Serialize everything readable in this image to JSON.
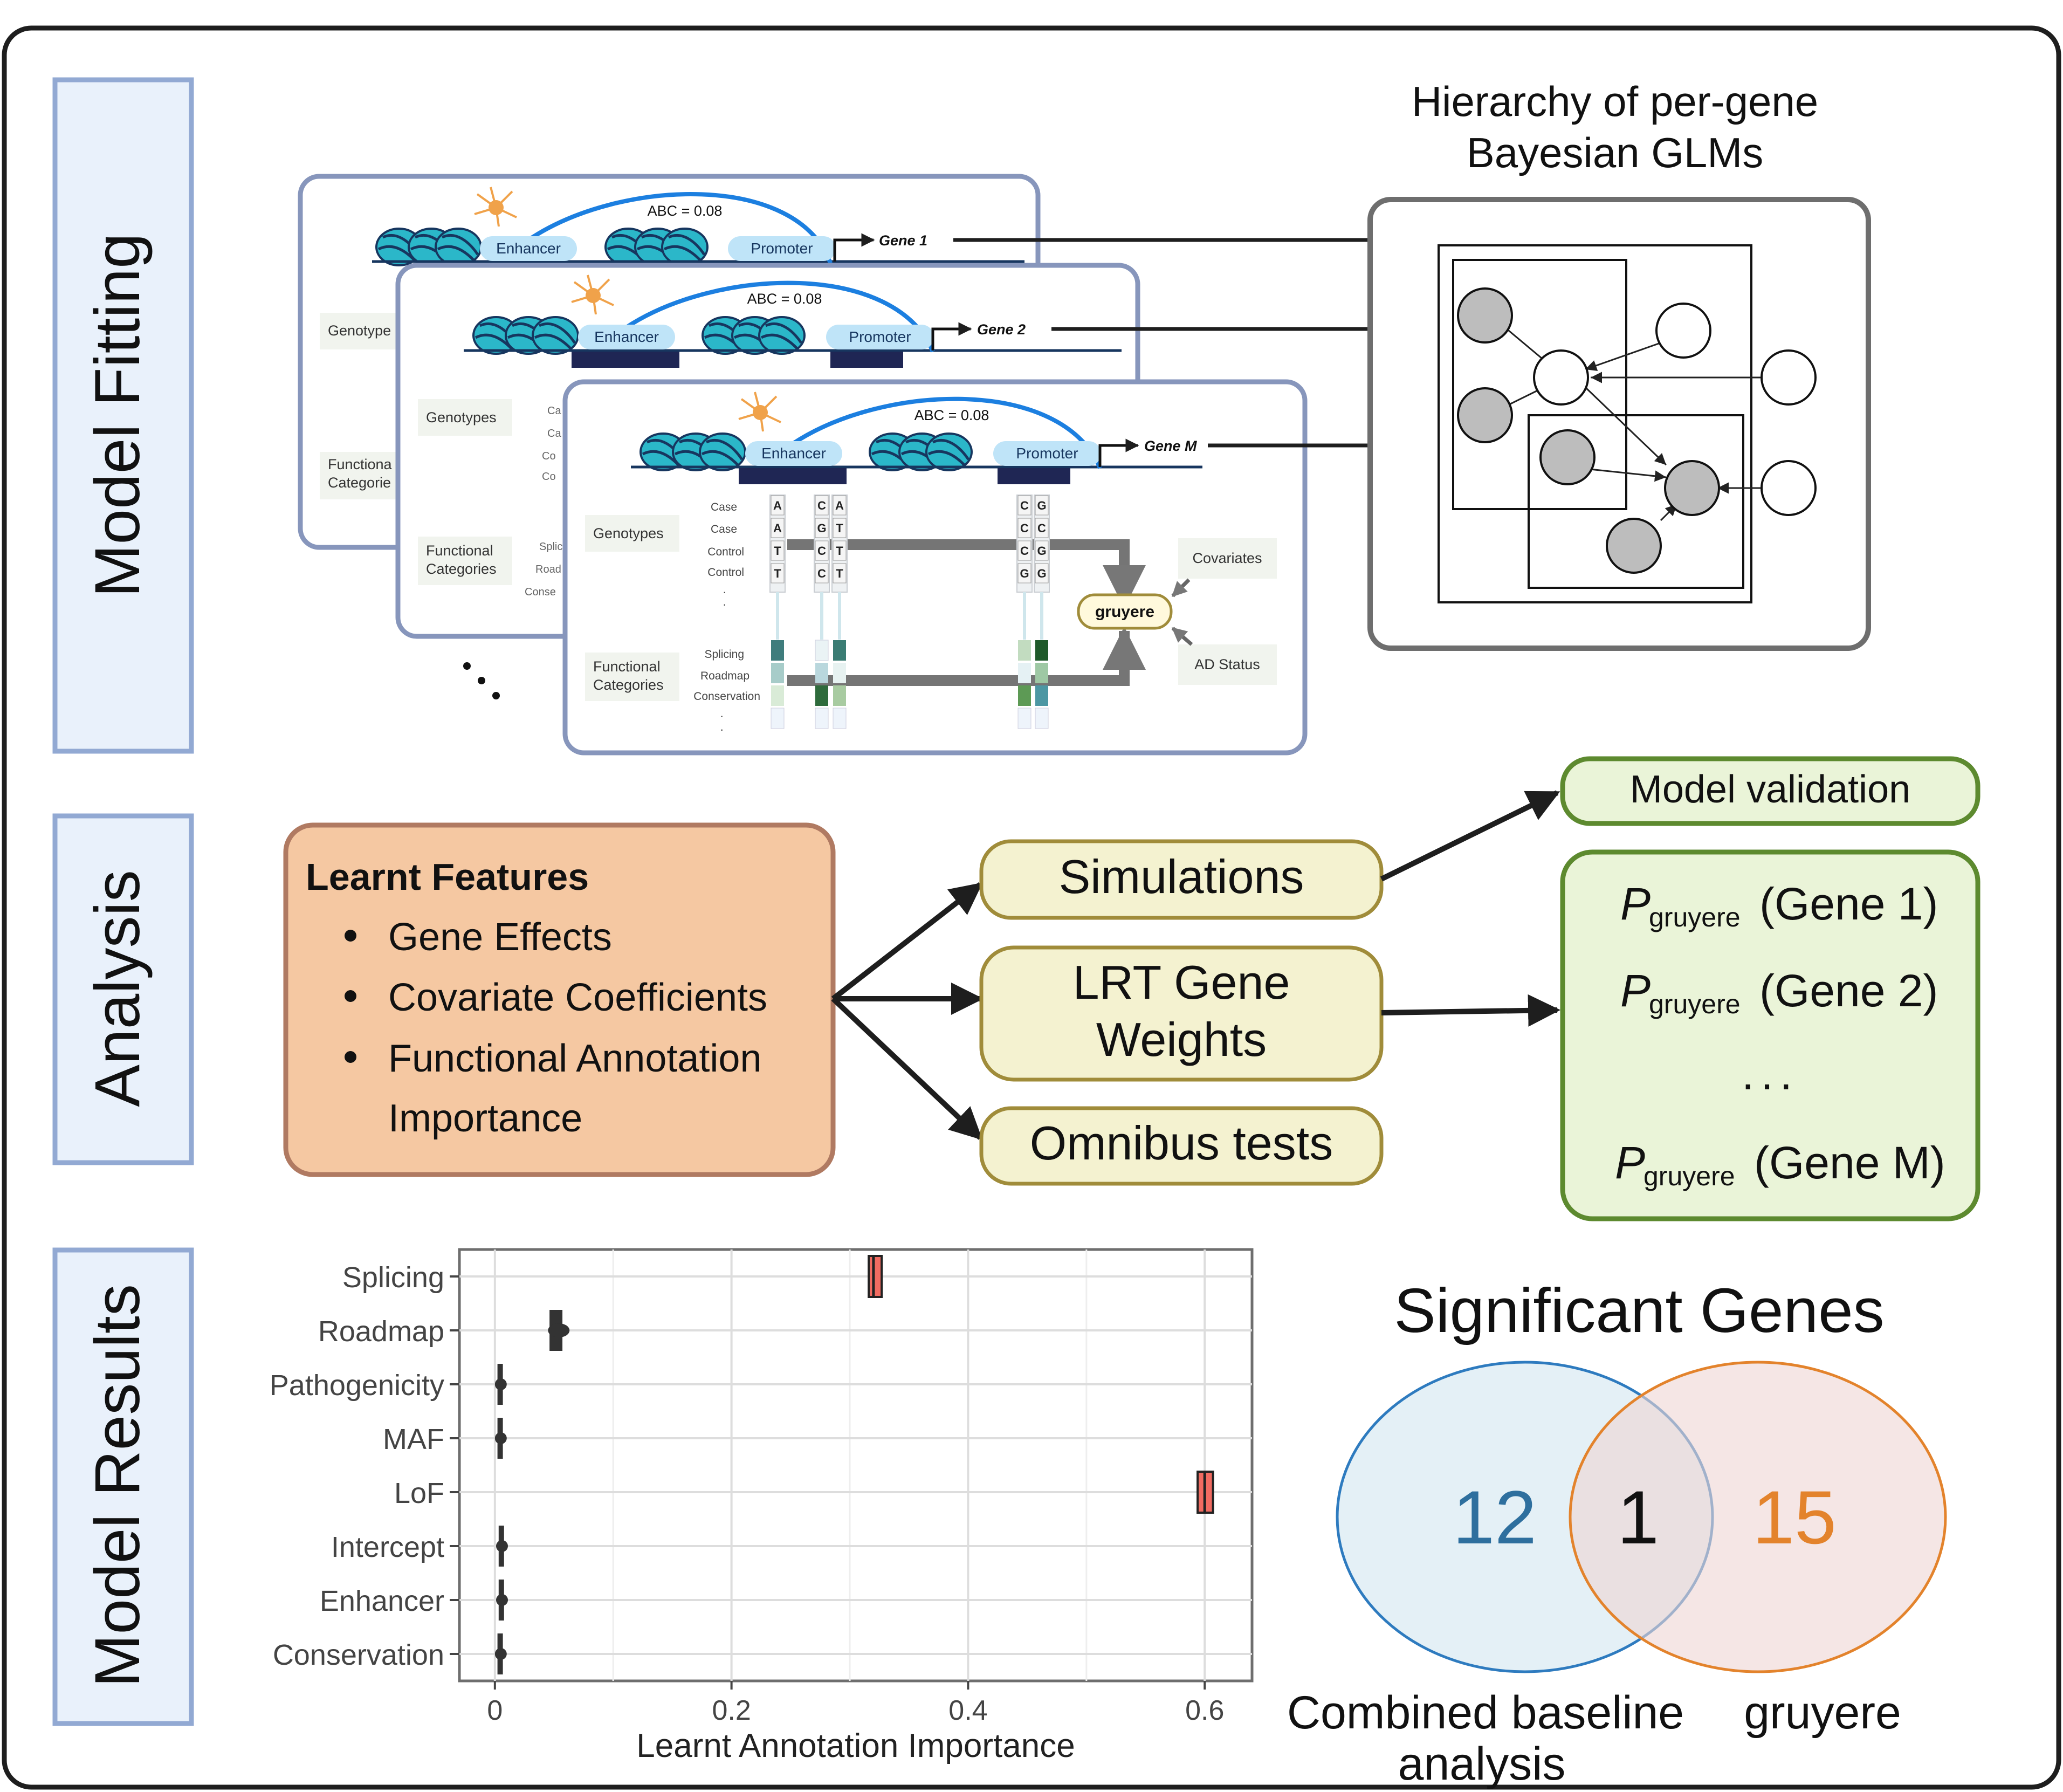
{
  "sections": {
    "model_fitting": "Model Fitting",
    "analysis": "Analysis",
    "model_results": "Model Results"
  },
  "fitting": {
    "hierarchy_title_line1": "Hierarchy of per-gene",
    "hierarchy_title_line2": "Bayesian GLMs",
    "panel1": {
      "abc": "ABC = 0.08",
      "enhancer": "Enhancer",
      "promoter": "Promoter",
      "gene": "Gene 1",
      "genotype": "Genotype",
      "functional_line1": "Functiona",
      "functional_line2": "Categorie"
    },
    "panel2": {
      "abc": "ABC = 0.08",
      "enhancer": "Enhancer",
      "promoter": "Promoter",
      "gene": "Gene 2",
      "genotypes": "Genotypes",
      "functional_line1": "Functional",
      "functional_line2": "Categories",
      "frag_ca1": "Ca",
      "frag_ca2": "Ca",
      "frag_co1": "Co",
      "frag_co2": "Co",
      "frag_splic": "Splic",
      "frag_road": "Road",
      "frag_conse": "Conse"
    },
    "panel3": {
      "abc": "ABC = 0.08",
      "enhancer": "Enhancer",
      "promoter": "Promoter",
      "gene": "Gene M",
      "genotypes": "Genotypes",
      "functional_line1": "Functional",
      "functional_line2": "Categories",
      "rows": [
        "Case",
        "Case",
        "Control",
        "Control"
      ],
      "func_rows": [
        "Splicing",
        "Roadmap",
        "Conservation"
      ],
      "col1": [
        "A",
        "A",
        "T",
        "T"
      ],
      "col2": [
        "C",
        "G",
        "C",
        "C"
      ],
      "col3": [
        "A",
        "T",
        "T",
        "T"
      ],
      "col4": [
        "C",
        "C",
        "C",
        "G"
      ],
      "col5": [
        "G",
        "C",
        "G",
        "G"
      ],
      "covariates": "Covariates",
      "ad_status": "AD Status",
      "gruyere": "gruyere"
    },
    "ellipsis": "..."
  },
  "analysis": {
    "learnt_title": "Learnt Features",
    "learnt_items": [
      "Gene Effects",
      "Covariate Coefficients",
      "Functional Annotation",
      "Importance"
    ],
    "simulations": "Simulations",
    "lrt_line1": "LRT Gene",
    "lrt_line2": "Weights",
    "omnibus": "Omnibus tests",
    "model_validation": "Model validation",
    "p_symbol": "P",
    "p_sub": "gruyere",
    "p_genes": [
      "(Gene 1)",
      "(Gene 2)",
      "(Gene M)"
    ],
    "p_ellipsis": "..."
  },
  "results": {
    "chart_data": {
      "type": "box",
      "xlabel": "Learnt Annotation Importance",
      "ylabel": "",
      "xlim": [
        -0.03,
        0.64
      ],
      "xticks": [
        0,
        0.2,
        0.4,
        0.6
      ],
      "xtick_labels": [
        "0",
        "0.2",
        "0.4",
        "0.6"
      ],
      "grid": true,
      "categories": [
        "Splicing",
        "Roadmap",
        "Pathogenicity",
        "MAF",
        "LoF",
        "Intercept",
        "Enhancer",
        "Conservation"
      ],
      "values": [
        0.32,
        0.054,
        0.005,
        0.005,
        0.6,
        0.006,
        0.006,
        0.005
      ],
      "q1": [
        0.316,
        0.048,
        0.004,
        0.004,
        0.594,
        0.005,
        0.005,
        0.004
      ],
      "q3": [
        0.326,
        0.058,
        0.006,
        0.006,
        0.607,
        0.007,
        0.007,
        0.006
      ],
      "highlight_color": "#f06b61",
      "highlighted": [
        "Splicing",
        "LoF"
      ]
    },
    "venn": {
      "title": "Significant Genes",
      "left_count": "12",
      "overlap_count": "1",
      "right_count": "15",
      "left_label_line1": "Combined baseline",
      "left_label_line2": "analysis",
      "right_label": "gruyere",
      "left_color": "#2e6f9e",
      "right_color": "#e3832c"
    }
  },
  "colors": {
    "section_fill": "#e9f1fb",
    "section_border": "#92a9d3",
    "learnt_fill": "#f5c8a2",
    "learnt_border": "#b07a62",
    "mid_fill": "#f4f2d0",
    "mid_border": "#a08c3a",
    "green_fill": "#eaf4d8",
    "green_border": "#5d8a2f"
  }
}
